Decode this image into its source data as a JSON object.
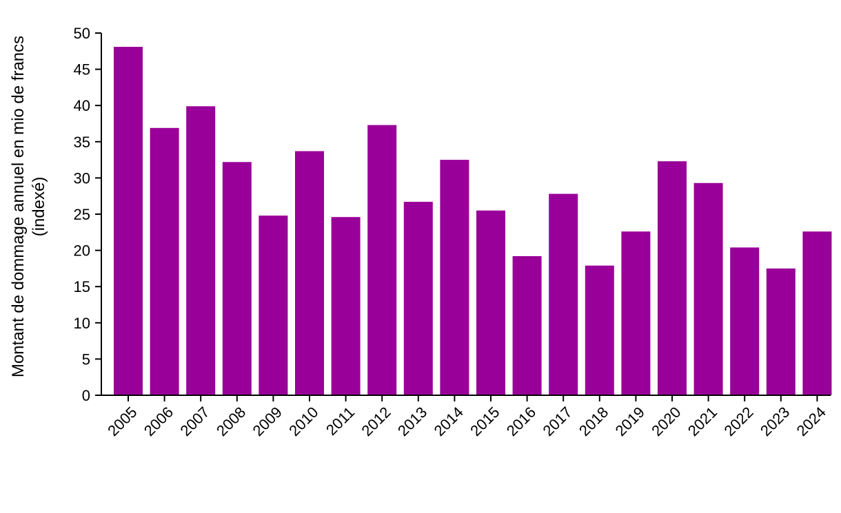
{
  "chart_data": {
    "type": "bar",
    "categories": [
      "2005",
      "2006",
      "2007",
      "2008",
      "2009",
      "2010",
      "2011",
      "2012",
      "2013",
      "2014",
      "2015",
      "2016",
      "2017",
      "2018",
      "2019",
      "2020",
      "2021",
      "2022",
      "2023",
      "2024"
    ],
    "values": [
      48.1,
      36.9,
      39.9,
      32.2,
      24.8,
      33.7,
      24.6,
      37.3,
      26.7,
      32.5,
      25.5,
      19.2,
      27.8,
      17.9,
      22.6,
      32.3,
      29.3,
      20.4,
      17.5,
      22.6
    ],
    "ylabel_line1": "Montant de dommage annuel en mio de francs",
    "ylabel_line2": "(indexé)",
    "ylim": [
      0,
      50
    ],
    "yticks": [
      0,
      5,
      10,
      15,
      20,
      25,
      30,
      35,
      40,
      45,
      50
    ],
    "grid": false,
    "bar_color": "#990099",
    "axis_color": "#000000"
  }
}
